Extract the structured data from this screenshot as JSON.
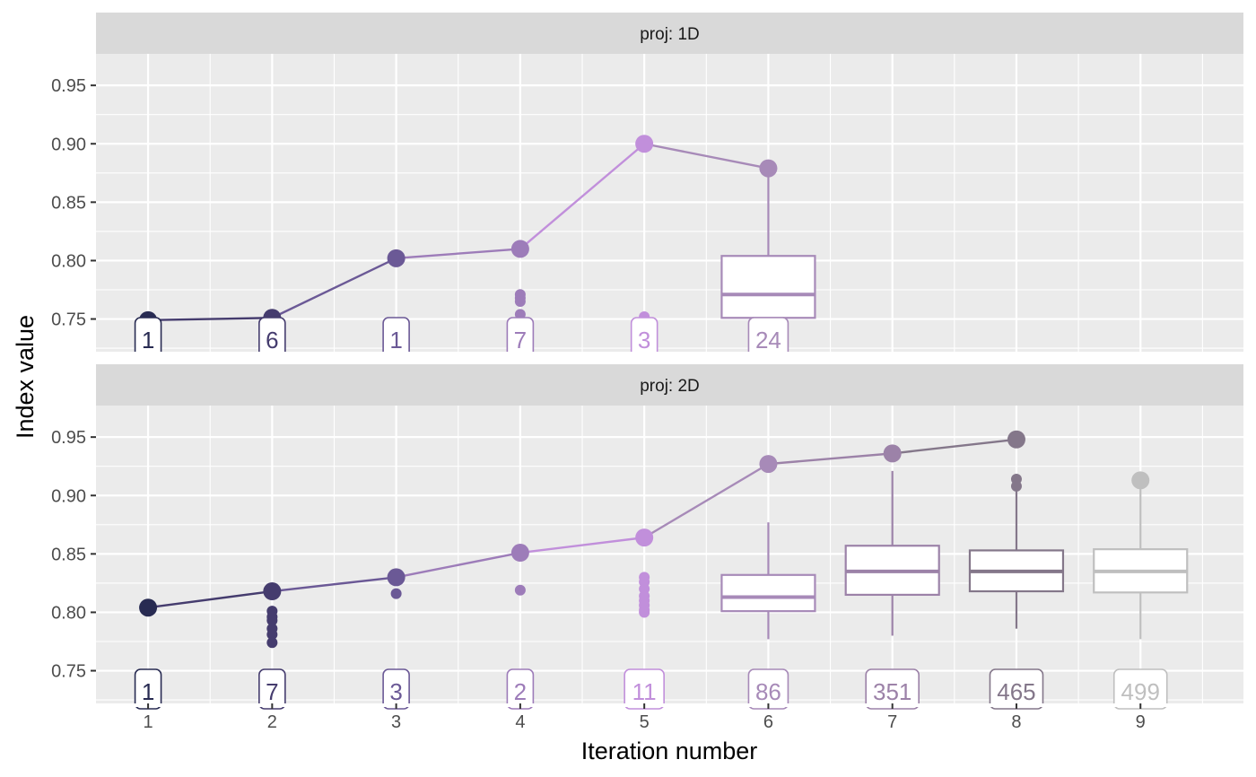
{
  "chart_data": {
    "type": "line",
    "xlabel": "Iteration number",
    "ylabel": "Index value",
    "x_ticks": [
      1,
      2,
      3,
      4,
      5,
      6,
      7,
      8,
      9
    ],
    "y_ticks": [
      "0.75",
      "0.80",
      "0.85",
      "0.90",
      "0.95"
    ],
    "ylim": [
      0.722,
      0.977
    ],
    "xlim": [
      0.58,
      9.83
    ],
    "grid": true,
    "colors": {
      "1": "#282b52",
      "2": "#453c6e",
      "3": "#6b5996",
      "4": "#9d7cb9",
      "5": "#c18fdb",
      "6": "#a78ab8",
      "7": "#9c82a8",
      "8": "#84778a",
      "9": "#bfbfbf"
    },
    "panels": [
      {
        "strip": "proj: 1D",
        "best_line": [
          {
            "x": 1,
            "y": 0.749
          },
          {
            "x": 2,
            "y": 0.751
          },
          {
            "x": 3,
            "y": 0.802
          },
          {
            "x": 4,
            "y": 0.81
          },
          {
            "x": 5,
            "y": 0.9
          },
          {
            "x": 6,
            "y": 0.879
          }
        ],
        "points": [
          {
            "x": 2,
            "y": 0.743
          },
          {
            "x": 2,
            "y": 0.736
          },
          {
            "x": 4,
            "y": 0.771
          },
          {
            "x": 4,
            "y": 0.768
          },
          {
            "x": 4,
            "y": 0.765
          },
          {
            "x": 4,
            "y": 0.754
          },
          {
            "x": 4,
            "y": 0.735
          },
          {
            "x": 5,
            "y": 0.752
          }
        ],
        "boxes": [
          {
            "x": 6,
            "low": 0.737,
            "q1": 0.751,
            "median": 0.771,
            "q3": 0.804,
            "high": 0.872
          }
        ],
        "counts": [
          {
            "x": 1,
            "label": "1"
          },
          {
            "x": 2,
            "label": "6"
          },
          {
            "x": 3,
            "label": "1"
          },
          {
            "x": 4,
            "label": "7"
          },
          {
            "x": 5,
            "label": "3"
          },
          {
            "x": 6,
            "label": "24"
          }
        ]
      },
      {
        "strip": "proj: 2D",
        "best_line": [
          {
            "x": 1,
            "y": 0.804
          },
          {
            "x": 2,
            "y": 0.818
          },
          {
            "x": 3,
            "y": 0.83
          },
          {
            "x": 4,
            "y": 0.851
          },
          {
            "x": 5,
            "y": 0.864
          },
          {
            "x": 6,
            "y": 0.927
          },
          {
            "x": 7,
            "y": 0.936
          },
          {
            "x": 8,
            "y": 0.948
          }
        ],
        "points": [
          {
            "x": 2,
            "y": 0.801
          },
          {
            "x": 2,
            "y": 0.796
          },
          {
            "x": 2,
            "y": 0.793
          },
          {
            "x": 2,
            "y": 0.786
          },
          {
            "x": 2,
            "y": 0.781
          },
          {
            "x": 2,
            "y": 0.774
          },
          {
            "x": 3,
            "y": 0.816
          },
          {
            "x": 4,
            "y": 0.819
          },
          {
            "x": 5,
            "y": 0.83
          },
          {
            "x": 5,
            "y": 0.826
          },
          {
            "x": 5,
            "y": 0.82
          },
          {
            "x": 5,
            "y": 0.814
          },
          {
            "x": 5,
            "y": 0.81
          },
          {
            "x": 5,
            "y": 0.806
          },
          {
            "x": 5,
            "y": 0.802
          },
          {
            "x": 5,
            "y": 0.8
          },
          {
            "x": 8,
            "y": 0.914
          },
          {
            "x": 8,
            "y": 0.908
          },
          {
            "x": 9,
            "y": 0.913,
            "large": true
          }
        ],
        "boxes": [
          {
            "x": 6,
            "low": 0.777,
            "q1": 0.801,
            "median": 0.813,
            "q3": 0.832,
            "high": 0.877
          },
          {
            "x": 7,
            "low": 0.78,
            "q1": 0.815,
            "median": 0.835,
            "q3": 0.857,
            "high": 0.921
          },
          {
            "x": 8,
            "low": 0.786,
            "q1": 0.818,
            "median": 0.835,
            "q3": 0.853,
            "high": 0.905
          },
          {
            "x": 9,
            "low": 0.777,
            "q1": 0.817,
            "median": 0.835,
            "q3": 0.854,
            "high": 0.907
          }
        ],
        "counts": [
          {
            "x": 1,
            "label": "1"
          },
          {
            "x": 2,
            "label": "7"
          },
          {
            "x": 3,
            "label": "3"
          },
          {
            "x": 4,
            "label": "2"
          },
          {
            "x": 5,
            "label": "11"
          },
          {
            "x": 6,
            "label": "86"
          },
          {
            "x": 7,
            "label": "351"
          },
          {
            "x": 8,
            "label": "465"
          },
          {
            "x": 9,
            "label": "499"
          }
        ]
      }
    ]
  }
}
